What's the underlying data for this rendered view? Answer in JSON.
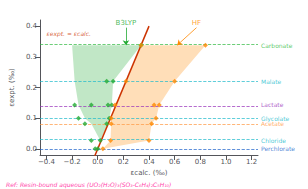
{
  "chart_data": {
    "type": "scatter",
    "xlabel": "εcalc. (‰)",
    "ylabel": "εexpt. (‰)",
    "xlim": [
      -0.45,
      1.25
    ],
    "ylim": [
      -0.02,
      0.42
    ],
    "xticks": [
      {
        "value": -0.4,
        "label": "−0.4"
      },
      {
        "value": -0.2,
        "label": "−0.2"
      },
      {
        "value": 0,
        "label": "0.0"
      },
      0.2,
      0.4,
      0.6,
      0.8,
      {
        "value": 1,
        "label": "1.0"
      },
      1.2
    ],
    "yticks": [
      {
        "value": 0,
        "label": "0.0"
      },
      0.1,
      0.2,
      0.3,
      0.4
    ],
    "grid": false,
    "series": [
      {
        "name": "B3LYP",
        "color": "#22aa33",
        "marker": "diamond",
        "x": [
          -0.02,
          0.0,
          0.02,
          -0.05,
          -0.1,
          0.07,
          -0.15,
          0.09,
          -0.18,
          -0.05,
          0.08,
          0.11,
          0.07,
          0.12,
          0.338
        ],
        "values": [
          0.0,
          0.0,
          0.027,
          0.027,
          0.082,
          0.082,
          0.1,
          0.1,
          0.143,
          0.143,
          0.143,
          0.143,
          0.22,
          0.22,
          0.338
        ],
        "band": {
          "left": [
            -0.2,
            -0.18,
            -0.15,
            -0.1,
            -0.05,
            0.02,
            0.0
          ],
          "right": [
            0.338,
            0.12,
            0.11,
            0.09,
            0.08,
            0.02,
            0.0
          ],
          "y": [
            0.338,
            0.22,
            0.143,
            0.1,
            0.082,
            0.027,
            0.0
          ]
        }
      },
      {
        "name": "HF",
        "color": "#ff8800",
        "marker": "diamond",
        "x": [
          0.04,
          0.1,
          0.4,
          0.105,
          0.42,
          0.105,
          0.455,
          0.135,
          0.44,
          0.48,
          0.22,
          0.6,
          0.338,
          0.84
        ],
        "values": [
          0.0,
          0.027,
          0.027,
          0.082,
          0.082,
          0.1,
          0.1,
          0.143,
          0.143,
          0.143,
          0.22,
          0.22,
          0.338,
          0.338
        ],
        "band": {
          "left": [
            0.338,
            0.22,
            0.135,
            0.105,
            0.105,
            0.1,
            0.04
          ],
          "right": [
            0.84,
            0.6,
            0.48,
            0.455,
            0.42,
            0.4,
            0.04
          ],
          "y": [
            0.338,
            0.22,
            0.143,
            0.1,
            0.082,
            0.027,
            0.0
          ]
        }
      }
    ],
    "hlines": [
      {
        "y": 0.338,
        "color": "#33bb44",
        "label": "Carbonate",
        "line_style": "dashed"
      },
      {
        "y": 0.22,
        "color": "#22bbcc",
        "label": "Malate",
        "line_style": "dashed"
      },
      {
        "y": 0.143,
        "color": "#9933bb",
        "label": "Lactate",
        "line_style": "dashed"
      },
      {
        "y": 0.1,
        "color": "#22bbcc",
        "label": "Glycolate",
        "line_style": "dashed"
      },
      {
        "y": 0.082,
        "color": "#ff9944",
        "label": "Acetate",
        "line_style": "dashed"
      },
      {
        "y": 0.027,
        "color": "#22bbcc",
        "label": "Chloride",
        "line_style": "dashed"
      },
      {
        "y": 0.0,
        "color": "#2266cc",
        "label": "Perchlorate",
        "line_style": "dashed"
      }
    ],
    "identity_line": {
      "x": [
        -0.2,
        0.4
      ],
      "y": [
        -0.2,
        0.4
      ],
      "color": "#cc3300",
      "line_style": "solid"
    },
    "annotations": [
      {
        "text": "B3LYP",
        "x": 0.22,
        "y": 0.395,
        "arrow_x": 0.22,
        "arrow_y": 0.338,
        "color": "#22aa33"
      },
      {
        "text": "HF",
        "x": 0.77,
        "y": 0.395,
        "arrow_x": 0.62,
        "arrow_y": 0.338,
        "color": "#ff8800"
      },
      {
        "text": "εexpt. = εcalc.",
        "x": -0.4,
        "y": 0.375,
        "color": "#cc3300"
      }
    ],
    "note": {
      "text": "Ref: Resin-bound aqueous (UO₂(H₂O)₃(SO₃-C₆H₄)₂C₅H₁₀)",
      "color": "#ff44aa"
    }
  }
}
